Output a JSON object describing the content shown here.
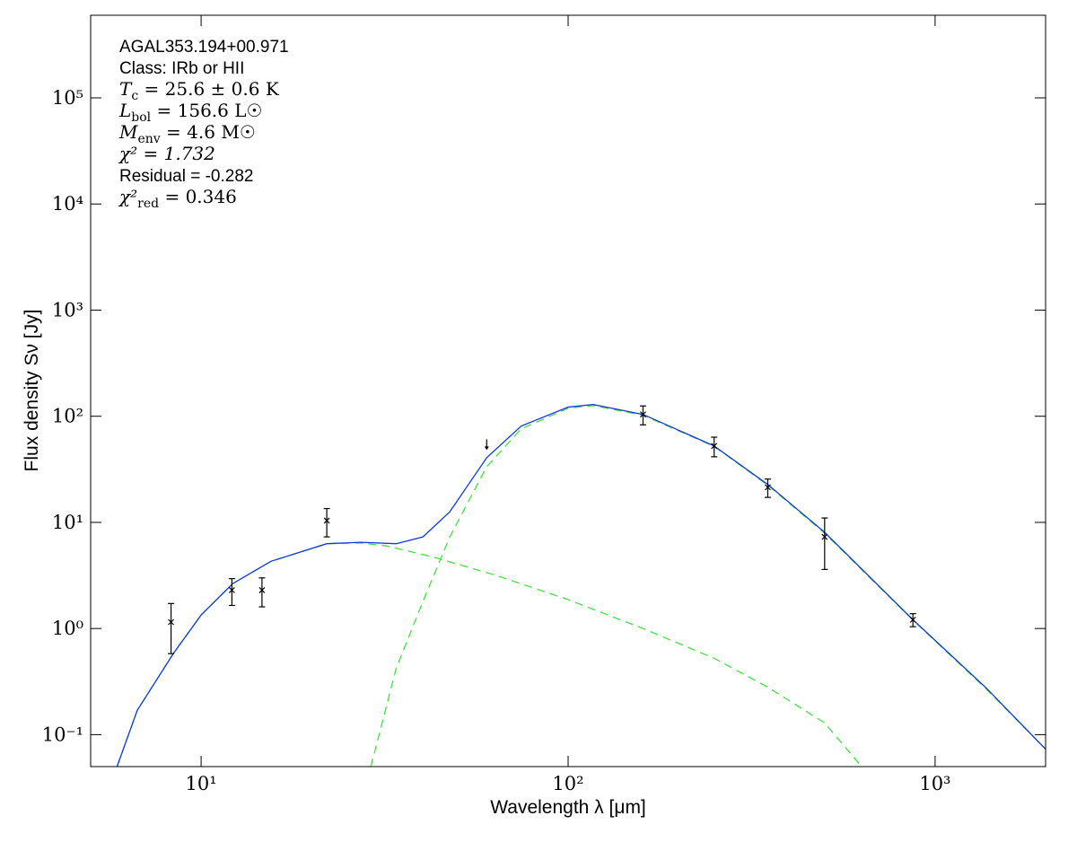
{
  "chart_data": {
    "type": "sed",
    "x_label": "Wavelength λ [μm]",
    "y_label": "Flux density Sν [Jy]",
    "annotations": [
      {
        "text": "AGAL353.194+00.971"
      },
      {
        "text": "Class: IRb or HII"
      },
      {
        "text": "T",
        "sub": "c",
        "rest": " = 25.6 ± 0.6 K"
      },
      {
        "text": "L",
        "sub": "bol",
        "rest": " = 156.6 L☉"
      },
      {
        "text": "M",
        "sub": "env",
        "rest": " = 4.6 M☉"
      },
      {
        "text": "χ² = 1.732"
      },
      {
        "text": "Residual = -0.282"
      },
      {
        "text": "χ²",
        "sub": "red",
        "rest": " = 0.346"
      }
    ],
    "log_x": true,
    "log_y": true,
    "xlim": [
      5,
      2000
    ],
    "ylim": [
      0.05,
      600000
    ],
    "xticks": [
      {
        "value": 10,
        "label": "10¹"
      },
      {
        "value": 100,
        "label": "10²"
      },
      {
        "value": 1000,
        "label": "10³"
      }
    ],
    "yticks": [
      {
        "value": 0.1,
        "label": "10⁻¹"
      },
      {
        "value": 1,
        "label": "10⁰"
      },
      {
        "value": 10,
        "label": "10¹"
      },
      {
        "value": 100,
        "label": "10²"
      },
      {
        "value": 1000,
        "label": "10³"
      },
      {
        "value": 10000,
        "label": "10⁴"
      },
      {
        "value": 100000,
        "label": "10⁵"
      }
    ],
    "series": [
      {
        "color": "#44e044",
        "dashed": true,
        "x": [
          5.9,
          6.7,
          8.4,
          10,
          12.2,
          15.5,
          22,
          27.2,
          32,
          42.5,
          63,
          100,
          160,
          250,
          350,
          500,
          630
        ],
        "values": [
          0.05,
          0.17,
          0.58,
          1.34,
          2.65,
          4.3,
          6.3,
          6.4,
          6.0,
          4.76,
          3.2,
          1.87,
          1.0,
          0.525,
          0.28,
          0.129,
          0.05
        ]
      },
      {
        "color": "#44e044",
        "dashed": true,
        "x": [
          29,
          34,
          40.2,
          47.6,
          60,
          74.5,
          100,
          117,
          160,
          250,
          350,
          500,
          870,
          1377,
          2000
        ],
        "values": [
          0.05,
          0.42,
          1.8,
          7.3,
          33.5,
          76,
          119,
          126,
          102,
          52,
          22.4,
          7.9,
          1.2,
          0.27,
          0.073
        ]
      },
      {
        "color": "#1038e0",
        "dashed": false,
        "x": [
          5.9,
          6.7,
          8.4,
          10,
          12.2,
          15.5,
          22,
          27.2,
          34,
          40.2,
          47.6,
          60,
          74.5,
          100,
          117,
          160,
          250,
          350,
          500,
          870,
          1377,
          2000
        ],
        "values": [
          0.05,
          0.17,
          0.58,
          1.34,
          2.65,
          4.3,
          6.3,
          6.5,
          6.3,
          7.3,
          12.6,
          40.7,
          80.7,
          122,
          129,
          104,
          52.5,
          22.7,
          8.07,
          1.21,
          0.276,
          0.073
        ]
      }
    ],
    "points": {
      "color": "#000000",
      "x": [
        8.28,
        12.13,
        14.65,
        22,
        60,
        160,
        250,
        350,
        500,
        870
      ],
      "values": [
        1.15,
        2.3,
        2.3,
        10.4,
        55,
        104,
        52.5,
        21.4,
        7.3,
        1.21
      ],
      "errors": [
        0.57,
        0.65,
        0.7,
        3.1,
        null,
        21,
        11,
        4.2,
        3.7,
        0.17
      ],
      "upper_limit": [
        false,
        false,
        false,
        false,
        true,
        false,
        false,
        false,
        false,
        false
      ]
    }
  }
}
